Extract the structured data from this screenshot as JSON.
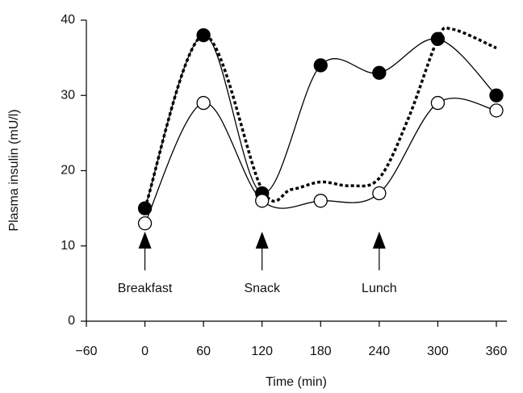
{
  "chart_data": {
    "type": "line",
    "x_label": "Time (min)",
    "y_label": "Plasma insulin (mU/l)",
    "xlim": [
      -60,
      360
    ],
    "xticks": [
      {
        "value": -60,
        "label": "−60"
      },
      0,
      60,
      120,
      180,
      240,
      300,
      360
    ],
    "ylim": [
      0,
      40
    ],
    "yticks": [
      0,
      10,
      20,
      30,
      40
    ],
    "series": [
      {
        "color": "#000000",
        "marker": "filled",
        "dash": false,
        "x": [
          0,
          60,
          120,
          180,
          240,
          300,
          360
        ],
        "values": [
          15,
          38,
          17,
          34,
          33,
          37.5,
          30
        ]
      },
      {
        "color": "#000000",
        "marker": "open",
        "dash": false,
        "x": [
          0,
          60,
          120,
          180,
          240,
          300,
          360
        ],
        "values": [
          13,
          29,
          16,
          16,
          17,
          29,
          28
        ]
      },
      {
        "color": "#000000",
        "marker": "none",
        "dash": true,
        "x": [
          0,
          60,
          120,
          150,
          180,
          210,
          240,
          270,
          300,
          315,
          360
        ],
        "values": [
          15,
          38,
          17.5,
          17.5,
          18.5,
          18,
          19,
          27,
          37.5,
          38.8,
          36.3
        ]
      }
    ],
    "annotations": [
      {
        "text": "Breakfast",
        "x": 0
      },
      {
        "text": "Snack",
        "x": 120
      },
      {
        "text": "Lunch",
        "x": 240
      }
    ]
  }
}
